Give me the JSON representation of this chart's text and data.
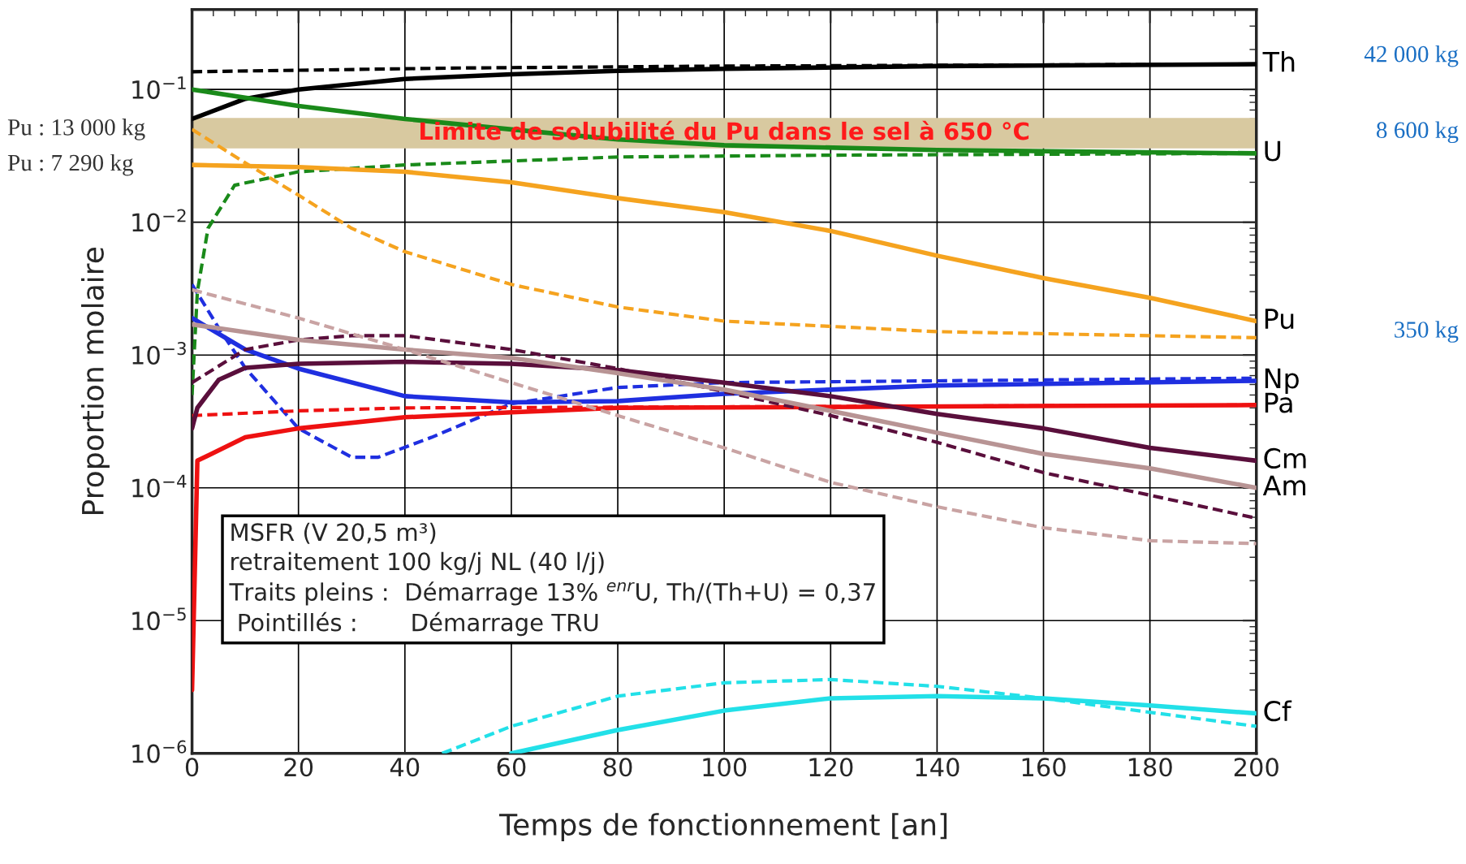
{
  "chart_data": {
    "type": "line",
    "xlabel": "Temps de fonctionnement [an]",
    "ylabel": "Proportion molaire",
    "log": "y",
    "xlim": [
      0,
      200
    ],
    "xticks": [
      0,
      20,
      40,
      60,
      80,
      100,
      120,
      140,
      160,
      180,
      200
    ],
    "ylim": [
      1e-06,
      0.4
    ],
    "yticks": [
      {
        "value": 1e-06,
        "label": "10$^{−6}$"
      },
      {
        "value": 1e-05,
        "label": "10$^{−5}$"
      },
      {
        "value": 0.0001,
        "label": "10$^{−4}$"
      },
      {
        "value": 0.001,
        "label": "10$^{−3}$"
      },
      {
        "value": 0.01,
        "label": "10$^{−2}$"
      },
      {
        "value": 0.1,
        "label": "10$^{−1}$"
      }
    ],
    "grid": true,
    "legend": false,
    "bands": [
      {
        "axis": "y",
        "from": 0.036,
        "to": 0.061,
        "label": "Limite de solubilité du Pu dans le sel à 650 °C",
        "color": "#d8c9a0"
      }
    ],
    "series": [
      {
        "name": "Th",
        "color": "#000000",
        "line_style": "solid",
        "x": [
          0,
          10,
          20,
          40,
          60,
          80,
          100,
          140,
          200
        ],
        "values": [
          0.06,
          0.085,
          0.1,
          0.12,
          0.13,
          0.138,
          0.143,
          0.15,
          0.155
        ]
      },
      {
        "color": "#000000",
        "line_style": "dashed",
        "x": [
          0,
          50,
          100,
          200
        ],
        "values": [
          0.136,
          0.145,
          0.15,
          0.155
        ]
      },
      {
        "name": "U",
        "color": "#1a8a1a",
        "line_style": "solid",
        "x": [
          0,
          20,
          40,
          60,
          80,
          100,
          140,
          200
        ],
        "values": [
          0.1,
          0.075,
          0.06,
          0.05,
          0.042,
          0.038,
          0.035,
          0.033
        ]
      },
      {
        "color": "#1a8a1a",
        "line_style": "dashed",
        "x": [
          0,
          1,
          3,
          8,
          20,
          40,
          80,
          120,
          200
        ],
        "values": [
          0.0005,
          0.003,
          0.009,
          0.019,
          0.024,
          0.027,
          0.031,
          0.032,
          0.033
        ]
      },
      {
        "name": "Pu",
        "color": "#f5a31f",
        "line_style": "solid",
        "x": [
          0,
          20,
          40,
          60,
          80,
          100,
          120,
          140,
          160,
          180,
          200
        ],
        "values": [
          0.027,
          0.026,
          0.024,
          0.02,
          0.0152,
          0.0119,
          0.0086,
          0.0056,
          0.0038,
          0.0027,
          0.0018
        ]
      },
      {
        "color": "#f5a31f",
        "line_style": "dashed",
        "x": [
          0,
          10,
          20,
          30,
          40,
          60,
          80,
          100,
          140,
          200
        ],
        "values": [
          0.05,
          0.028,
          0.016,
          0.009,
          0.006,
          0.0034,
          0.0023,
          0.0018,
          0.0015,
          0.00135
        ]
      },
      {
        "name": "Np",
        "color": "#1f2fe0",
        "line_style": "solid",
        "x": [
          0,
          10,
          20,
          40,
          60,
          80,
          100,
          140,
          200
        ],
        "values": [
          0.0019,
          0.0011,
          0.00079,
          0.00049,
          0.00044,
          0.00045,
          0.00051,
          0.00059,
          0.00064
        ]
      },
      {
        "color": "#1f2fe0",
        "line_style": "dashed",
        "x": [
          0,
          5,
          10,
          20,
          30,
          35,
          45,
          60,
          80,
          100,
          200
        ],
        "values": [
          0.0034,
          0.0016,
          0.0008,
          0.00028,
          0.00017,
          0.00017,
          0.00024,
          0.00043,
          0.00057,
          0.00062,
          0.00067
        ]
      },
      {
        "name": "Pa",
        "color": "#ee1111",
        "line_style": "solid",
        "x": [
          0,
          1,
          10,
          20,
          40,
          60,
          80,
          200
        ],
        "values": [
          3e-06,
          0.00016,
          0.00024,
          0.00028,
          0.00034,
          0.00037,
          0.0004,
          0.00042
        ]
      },
      {
        "color": "#ee1111",
        "line_style": "dashed",
        "x": [
          0,
          20,
          40,
          200
        ],
        "values": [
          0.00035,
          0.00038,
          0.0004,
          0.00042
        ]
      },
      {
        "name": "Cm",
        "color": "#5a0f3c",
        "line_style": "solid",
        "x": [
          0,
          1,
          5,
          10,
          20,
          40,
          60,
          80,
          100,
          120,
          140,
          160,
          180,
          200
        ],
        "values": [
          0.00028,
          0.0004,
          0.00065,
          0.0008,
          0.00086,
          0.00089,
          0.00086,
          0.00077,
          0.00062,
          0.00049,
          0.00036,
          0.00028,
          0.0002,
          0.00016
        ]
      },
      {
        "color": "#5a0f3c",
        "line_style": "dashed",
        "x": [
          0,
          10,
          20,
          30,
          40,
          60,
          80,
          100,
          120,
          140,
          160,
          180,
          200
        ],
        "values": [
          0.00062,
          0.0011,
          0.0013,
          0.0014,
          0.0014,
          0.0011,
          0.00079,
          0.00053,
          0.00035,
          0.00022,
          0.00013,
          8.8e-05,
          5.9e-05
        ]
      },
      {
        "name": "Am",
        "color": "#b89494",
        "line_style": "solid",
        "x": [
          0,
          20,
          40,
          60,
          80,
          100,
          120,
          140,
          160,
          180,
          200
        ],
        "values": [
          0.0017,
          0.0013,
          0.0011,
          0.00095,
          0.00073,
          0.00055,
          0.00038,
          0.00026,
          0.00018,
          0.00014,
          0.0001
        ]
      },
      {
        "color": "#c9a3a3",
        "line_style": "dashed",
        "x": [
          0,
          20,
          40,
          60,
          80,
          100,
          120,
          140,
          160,
          180,
          200
        ],
        "values": [
          0.0031,
          0.0019,
          0.0011,
          0.00062,
          0.00035,
          0.0002,
          0.00011,
          7.2e-05,
          5e-05,
          4e-05,
          3.8e-05
        ]
      },
      {
        "name": "Cf",
        "color": "#22e0e8",
        "line_style": "solid",
        "x": [
          60,
          80,
          100,
          120,
          140,
          160,
          180,
          200
        ],
        "values": [
          1e-06,
          1.5e-06,
          2.1e-06,
          2.6e-06,
          2.7e-06,
          2.6e-06,
          2.3e-06,
          2e-06
        ]
      },
      {
        "color": "#22e0e8",
        "line_style": "dashed",
        "x": [
          47,
          60,
          80,
          100,
          120,
          140,
          160,
          200
        ],
        "values": [
          1e-06,
          1.6e-06,
          2.7e-06,
          3.4e-06,
          3.6e-06,
          3.2e-06,
          2.6e-06,
          1.6e-06
        ]
      }
    ],
    "annotations": [
      {
        "text": "Pu : 13 000 kg",
        "x": 0,
        "y": 0.05
      },
      {
        "text": "Pu : 7 290 kg",
        "x": 0,
        "y": 0.027
      },
      "42 000 kg",
      "8 600 kg",
      "350 kg",
      "MSFR (V 20,5 m³)",
      "retraitement 100 kg/j NL (40 l/j)",
      "Traits pleins :  Démarrage 13% $^{enr}$U, Th/(Th+U) = 0,37",
      " Pointillés :       Démarrage TRU"
    ]
  }
}
